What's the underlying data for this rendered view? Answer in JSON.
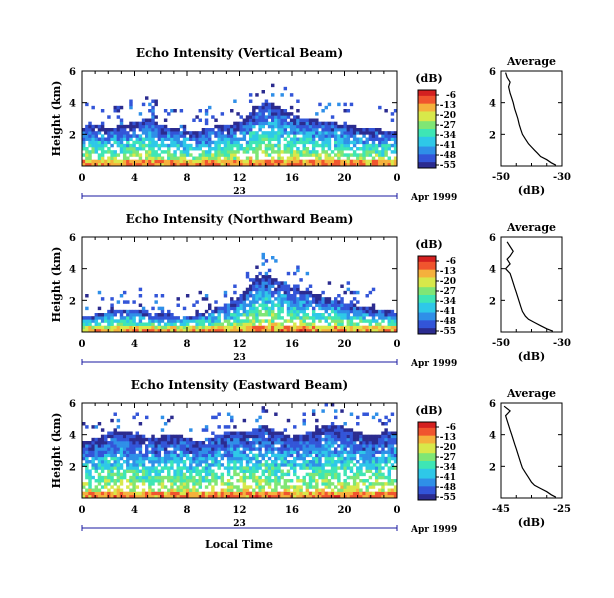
{
  "figure": {
    "xlabel": "Local Time",
    "date_day": "23",
    "date_month": "Apr 1999",
    "colorbar_unit": "(dB)",
    "colorbar_ticks": [
      "-6",
      "-13",
      "-20",
      "-27",
      "-34",
      "-41",
      "-48",
      "-55"
    ]
  },
  "colors": {
    "scale": [
      "#2b2b8f",
      "#3355d8",
      "#2f8fe8",
      "#2ec8e8",
      "#3ee6b5",
      "#7fe675",
      "#d8e84a",
      "#f5b13c",
      "#f0552e",
      "#d42020"
    ]
  },
  "chart_data": [
    {
      "type": "heatmap",
      "title": "Echo Intensity (Vertical Beam)",
      "ylabel": "Height (km)",
      "xlim": [
        0,
        24
      ],
      "ylim": [
        0,
        6
      ],
      "x_ticks": [
        "0",
        "4",
        "8",
        "12",
        "16",
        "20",
        "0"
      ],
      "y_ticks": [
        "2",
        "4",
        "6"
      ],
      "z_range_db": [
        -55,
        -6
      ],
      "echo_top_km": [
        2.5,
        2.6,
        2.4,
        2.6,
        2.8,
        3.0,
        2.6,
        2.4,
        2.2,
        2.3,
        2.5,
        2.6,
        2.8,
        3.6,
        4.1,
        3.8,
        3.3,
        3.0,
        2.9,
        2.8,
        2.6,
        2.5,
        2.4,
        2.3,
        2.2
      ]
    },
    {
      "type": "heatmap",
      "title": "Echo Intensity (Northward Beam)",
      "ylabel": "Height (km)",
      "xlim": [
        0,
        24
      ],
      "ylim": [
        0,
        6
      ],
      "x_ticks": [
        "0",
        "4",
        "8",
        "12",
        "16",
        "20",
        "0"
      ],
      "y_ticks": [
        "2",
        "4",
        "6"
      ],
      "z_range_db": [
        -55,
        -6
      ],
      "echo_top_km": [
        1.0,
        1.1,
        1.3,
        1.5,
        1.4,
        1.3,
        1.2,
        1.1,
        1.0,
        1.2,
        1.5,
        1.8,
        2.2,
        3.2,
        3.7,
        3.3,
        2.9,
        2.6,
        2.4,
        2.1,
        1.9,
        1.7,
        1.6,
        1.4,
        1.3
      ]
    },
    {
      "type": "heatmap",
      "title": "Echo Intensity (Eastward Beam)",
      "ylabel": "Height (km)",
      "xlim": [
        0,
        24
      ],
      "ylim": [
        0,
        6
      ],
      "x_ticks": [
        "0",
        "4",
        "8",
        "12",
        "16",
        "20",
        "0"
      ],
      "y_ticks": [
        "2",
        "4",
        "6"
      ],
      "z_range_db": [
        -55,
        -6
      ],
      "echo_top_km": [
        3.6,
        3.8,
        4.2,
        4.3,
        4.0,
        3.7,
        3.9,
        4.1,
        3.8,
        3.5,
        3.9,
        4.1,
        4.2,
        4.3,
        4.6,
        4.2,
        3.9,
        4.0,
        4.4,
        4.7,
        4.5,
        4.2,
        3.9,
        4.1,
        4.3
      ]
    },
    {
      "type": "line",
      "title": "Average",
      "xlabel": "(dB)",
      "xlim": [
        -50,
        -30
      ],
      "ylim": [
        0,
        6
      ],
      "x_ticks": [
        "-50",
        "-30"
      ],
      "y_ticks": [
        "2",
        "4",
        "6"
      ],
      "x": [
        -48.5,
        -48,
        -47,
        -47.5,
        -47,
        -46.5,
        -46,
        -45.5,
        -45,
        -44.5,
        -44,
        -43.5,
        -43,
        -42,
        -41,
        -40,
        -39,
        -38,
        -37,
        -35,
        -33.5,
        -32
      ],
      "y": [
        5.9,
        5.6,
        5.3,
        5.0,
        4.6,
        4.3,
        4.0,
        3.6,
        3.3,
        3.0,
        2.6,
        2.3,
        2.0,
        1.7,
        1.4,
        1.2,
        1.0,
        0.8,
        0.6,
        0.4,
        0.2,
        0.05
      ]
    },
    {
      "type": "line",
      "title": "Average",
      "xlabel": "(dB)",
      "xlim": [
        -50,
        -30
      ],
      "ylim": [
        0,
        6
      ],
      "x_ticks": [
        "-50",
        "-30"
      ],
      "y_ticks": [
        "2",
        "4",
        "6"
      ],
      "x": [
        -48,
        -47,
        -46,
        -47,
        -48,
        -47,
        -48.5,
        -47,
        -46.5,
        -46,
        -45.5,
        -45,
        -44.5,
        -44,
        -43.5,
        -43,
        -42,
        -41,
        -39,
        -37,
        -35,
        -33
      ],
      "y": [
        5.7,
        5.4,
        5.1,
        4.8,
        4.6,
        4.3,
        4.0,
        3.7,
        3.4,
        3.1,
        2.8,
        2.5,
        2.2,
        1.9,
        1.6,
        1.3,
        1.0,
        0.8,
        0.6,
        0.4,
        0.2,
        0.05
      ]
    },
    {
      "type": "line",
      "title": "Average",
      "xlabel": "(dB)",
      "xlim": [
        -45,
        -25
      ],
      "ylim": [
        0,
        6
      ],
      "x_ticks": [
        "-45",
        "-25"
      ],
      "y_ticks": [
        "2",
        "4",
        "6"
      ],
      "x": [
        -44,
        -42,
        -43.5,
        -43,
        -42.5,
        -42,
        -41.5,
        -41,
        -40.5,
        -40,
        -39.5,
        -39,
        -38.5,
        -38,
        -37,
        -36,
        -35,
        -34,
        -32,
        -30,
        -28.5,
        -27
      ],
      "y": [
        5.8,
        5.5,
        5.2,
        4.9,
        4.6,
        4.3,
        4.0,
        3.7,
        3.4,
        3.1,
        2.8,
        2.5,
        2.2,
        1.9,
        1.6,
        1.3,
        1.0,
        0.8,
        0.6,
        0.4,
        0.2,
        0.05
      ]
    }
  ]
}
